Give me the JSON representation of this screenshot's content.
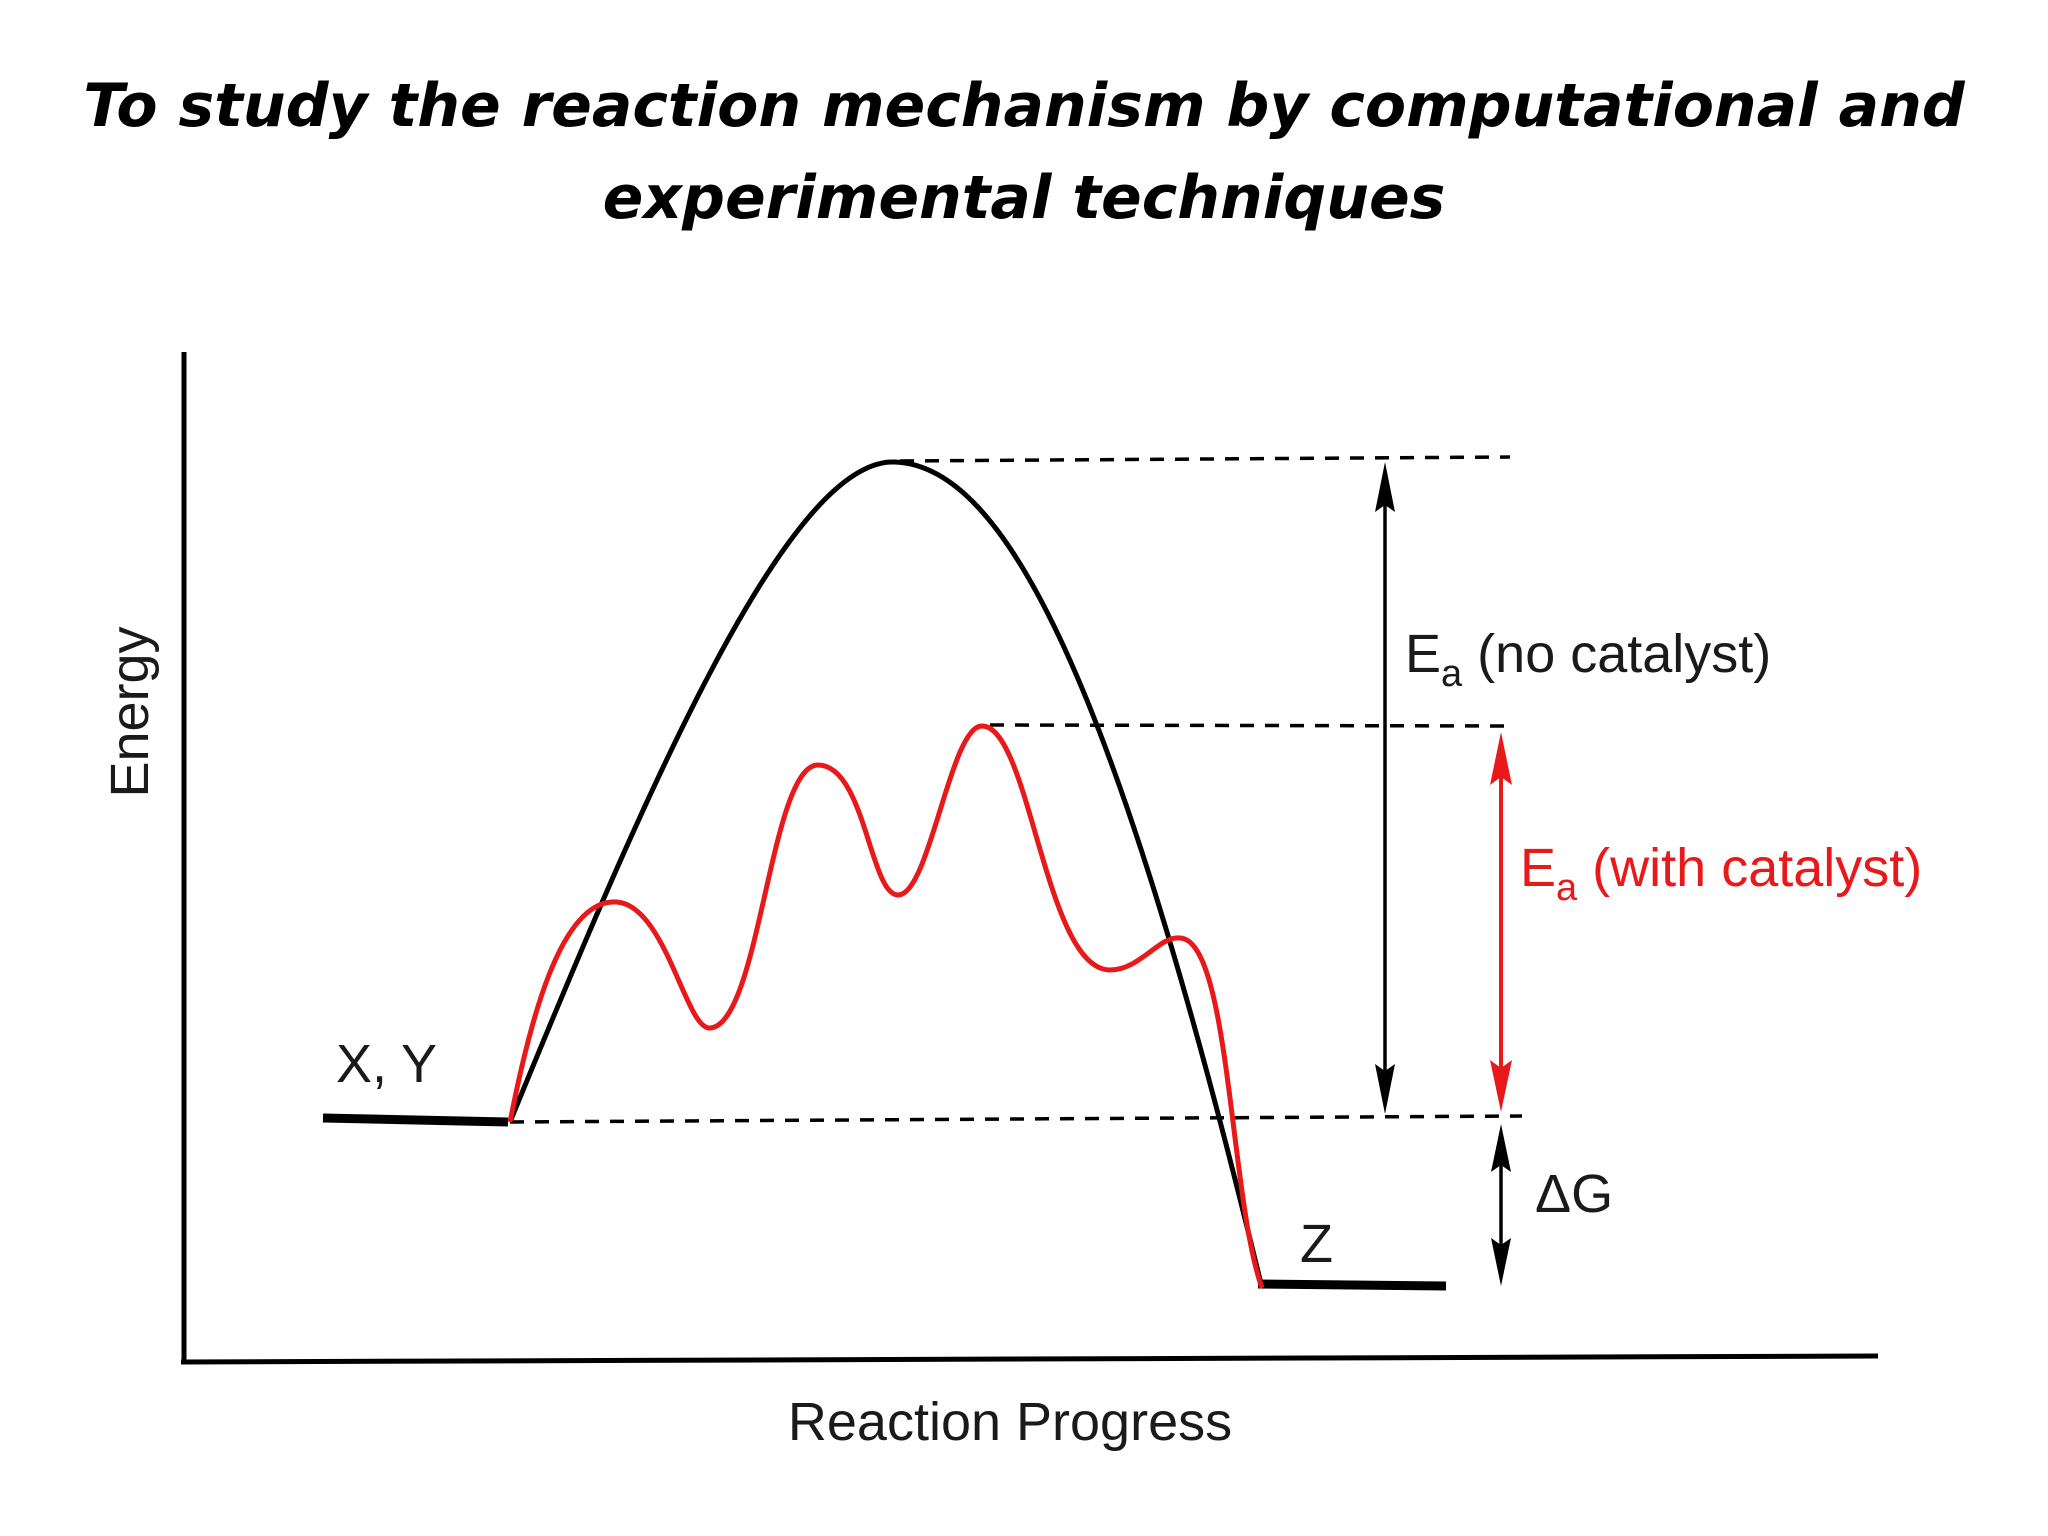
{
  "title": {
    "line1": "To study the reaction mechanism by computational and",
    "line2": "experimental techniques"
  },
  "diagram": {
    "y_axis_label": "Energy",
    "x_axis_label": "Reaction Progress",
    "reactants_label": "X, Y",
    "product_label": "Z",
    "ea_no_catalyst": {
      "symbol": "E",
      "subscript": "a",
      "text": " (no catalyst)"
    },
    "ea_with_catalyst": {
      "symbol": "E",
      "subscript": "a",
      "text": " (with catalyst)"
    },
    "delta_g_label": "ΔG"
  },
  "colors": {
    "uncatalyzed_curve": "#000000",
    "catalyzed_curve": "#e8191a",
    "catalyst_label": "#e8191a",
    "text": "#1a1a1a"
  }
}
